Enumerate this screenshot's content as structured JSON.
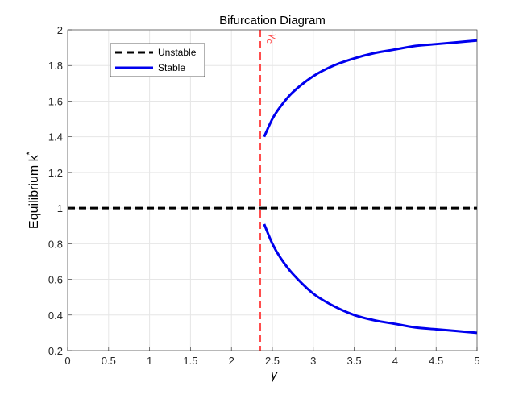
{
  "chart_data": {
    "type": "line",
    "title": "Bifurcation Diagram",
    "xlabel": "γ",
    "ylabel": "Equilibrium k",
    "ylabel_superscript": "*",
    "xlim": [
      0,
      5
    ],
    "ylim": [
      0.2,
      2
    ],
    "xticks": [
      "0",
      "0.5",
      "1",
      "1.5",
      "2",
      "2.5",
      "3",
      "3.5",
      "4",
      "4.5",
      "5"
    ],
    "yticks": [
      "0.2",
      "0.4",
      "0.6",
      "0.8",
      "1",
      "1.2",
      "1.4",
      "1.6",
      "1.8",
      "2"
    ],
    "grid": true,
    "legend_position": "top-left",
    "critical_line": {
      "x": 2.35,
      "label": "γ",
      "label_subscript": "c",
      "color": "#ff4d4d"
    },
    "series": [
      {
        "name": "Unstable",
        "style": "dashed",
        "color": "#000000",
        "x": [
          0,
          5
        ],
        "y": [
          1,
          1
        ]
      },
      {
        "name": "Stable",
        "style": "solid",
        "color": "#0000ee",
        "branch": "upper",
        "x": [
          2.4,
          2.5,
          2.6,
          2.75,
          3.0,
          3.25,
          3.5,
          3.75,
          4.0,
          4.25,
          4.5,
          4.75,
          5.0
        ],
        "y": [
          1.4,
          1.5,
          1.57,
          1.65,
          1.74,
          1.8,
          1.84,
          1.87,
          1.89,
          1.91,
          1.92,
          1.93,
          1.94
        ]
      },
      {
        "name": "Stable",
        "style": "solid",
        "color": "#0000ee",
        "branch": "lower",
        "x": [
          2.4,
          2.5,
          2.6,
          2.75,
          3.0,
          3.25,
          3.5,
          3.75,
          4.0,
          4.25,
          4.5,
          4.75,
          5.0
        ],
        "y": [
          0.91,
          0.8,
          0.72,
          0.63,
          0.52,
          0.45,
          0.4,
          0.37,
          0.35,
          0.33,
          0.32,
          0.31,
          0.3
        ]
      }
    ]
  }
}
